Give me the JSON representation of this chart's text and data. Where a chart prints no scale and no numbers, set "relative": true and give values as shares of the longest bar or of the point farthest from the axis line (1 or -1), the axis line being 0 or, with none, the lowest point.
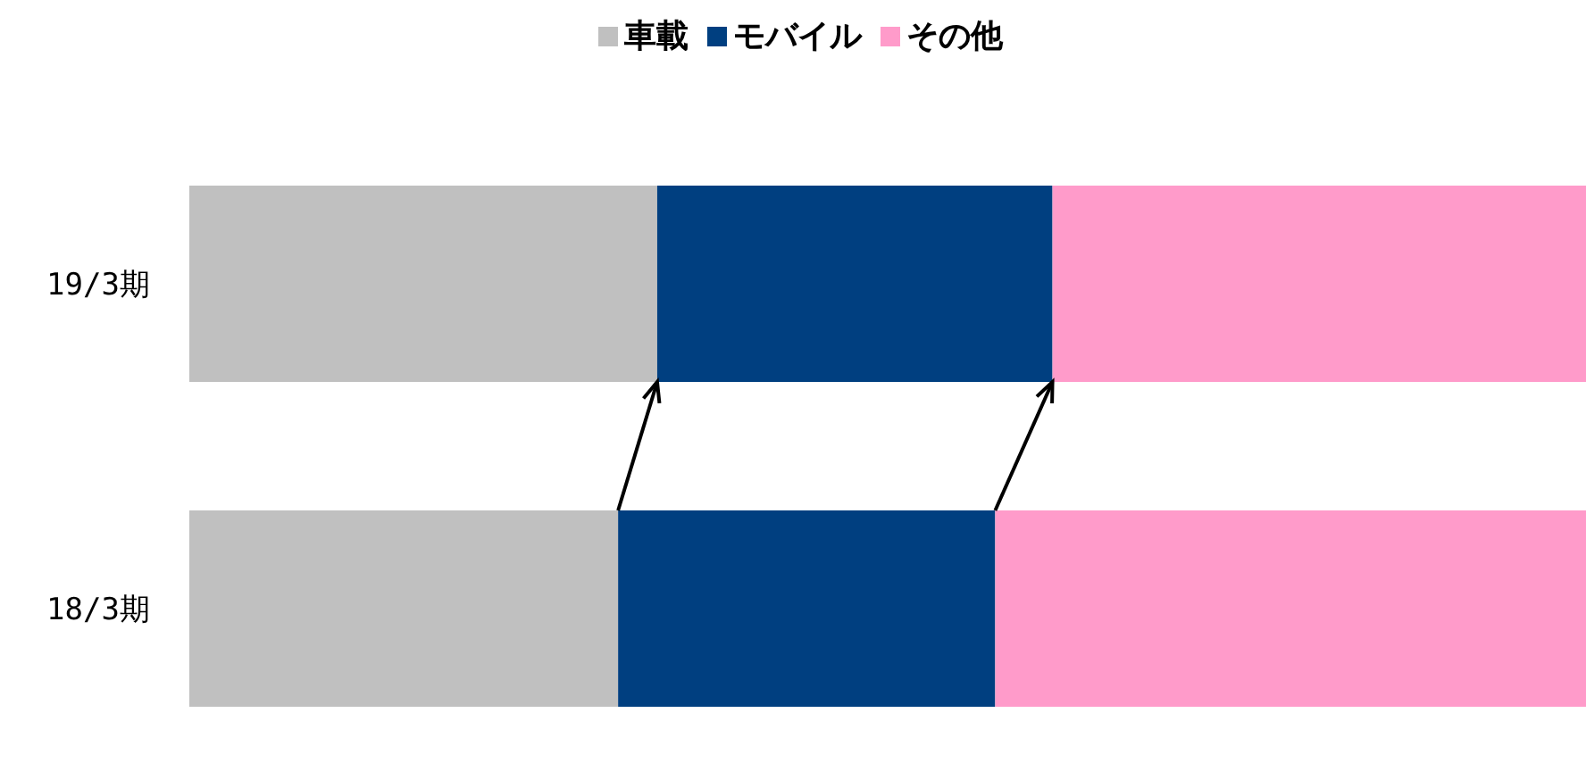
{
  "chart_data": {
    "type": "bar",
    "orientation": "horizontal",
    "stacked": true,
    "relative": true,
    "categories": [
      "19/3期",
      "18/3期"
    ],
    "series": [
      {
        "name": "車載",
        "color": "#c0c0c0",
        "values": [
          0.335,
          0.307
        ]
      },
      {
        "name": "モバイル",
        "color": "#003f80",
        "values": [
          0.283,
          0.27
        ]
      },
      {
        "name": "その他",
        "color": "#ff9bca",
        "values": [
          0.382,
          0.423
        ]
      }
    ],
    "legend": "top",
    "grid": false
  }
}
